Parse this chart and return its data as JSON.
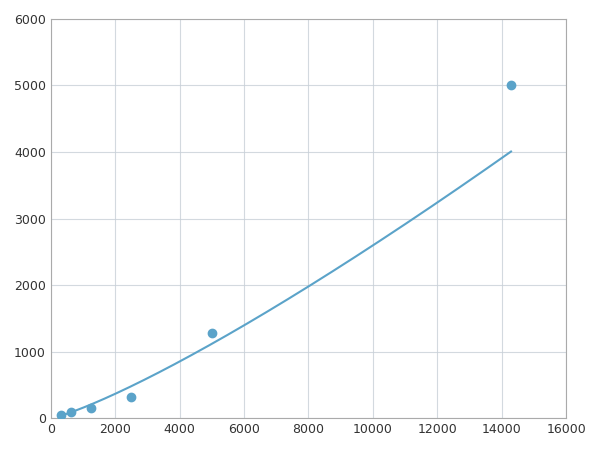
{
  "x_points": [
    312.5,
    625,
    1250,
    2500,
    5000,
    14286
  ],
  "y_points": [
    50,
    100,
    150,
    320,
    1280,
    5000
  ],
  "line_color": "#5BA3C9",
  "marker_color": "#5BA3C9",
  "marker_size": 6,
  "marker_style": "o",
  "line_width": 1.5,
  "xlim": [
    0,
    16000
  ],
  "ylim": [
    0,
    6000
  ],
  "xticks": [
    0,
    2000,
    4000,
    6000,
    8000,
    10000,
    12000,
    14000,
    16000
  ],
  "yticks": [
    0,
    1000,
    2000,
    3000,
    4000,
    5000,
    6000
  ],
  "grid_color": "#c8d0d8",
  "grid_alpha": 0.8,
  "bg_color": "#ffffff",
  "spine_color": "#aaaaaa"
}
